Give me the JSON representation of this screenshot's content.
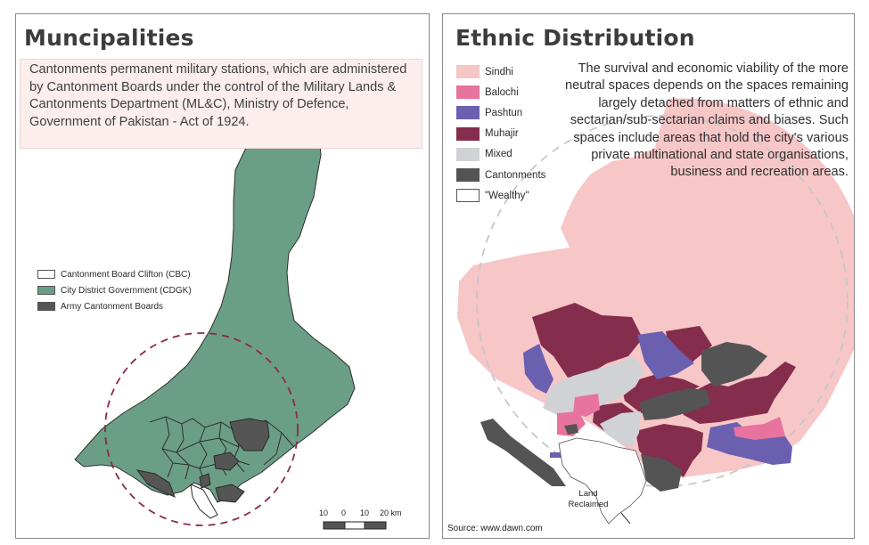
{
  "municipalities": {
    "title": "Muncipalities",
    "description": "Cantonments permanent military stations, which are administered by Cantonment Boards under the control of the Military Lands & Cantonments Department (ML&C), Ministry of Defence, Government of Pakistan - Act of 1924.",
    "legend": [
      {
        "label": "Cantonment Board Clifton (CBC)",
        "color": "#ffffff"
      },
      {
        "label": "City District  Government (CDGK)",
        "color": "#6b9e86"
      },
      {
        "label": "Army Cantonment Boards",
        "color": "#555555"
      }
    ],
    "scale": {
      "labels": [
        "10",
        "0",
        "10",
        "20 km"
      ]
    },
    "colors": {
      "land": "#6b9e86",
      "outline": "#2e2e2e",
      "circle": "#8c2a46"
    }
  },
  "ethnic": {
    "title": "Ethnic Distribution",
    "legend": [
      {
        "label": "Sindhi",
        "color": "#f7c6c7"
      },
      {
        "label": "Balochi",
        "color": "#e8739e"
      },
      {
        "label": "Pashtun",
        "color": "#6b5fb0"
      },
      {
        "label": "Muhajir",
        "color": "#842d4c"
      },
      {
        "label": "Mixed",
        "color": "#d0d2d5"
      },
      {
        "label": "Cantonments",
        "color": "#545454"
      },
      {
        "label": "\"Wealthy\"",
        "color": "#ffffff"
      }
    ],
    "description": "The survival and economic viability of the more neutral spaces depends on the spaces remaining largely detached from matters of ethnic and sectarian/sub-sectarian claims and biases. Such spaces include areas that hold the city's various private multinational and state organisations, business and recreation areas.",
    "annotation": "Land Reclaimed",
    "source": "Source: www.dawn.com"
  }
}
